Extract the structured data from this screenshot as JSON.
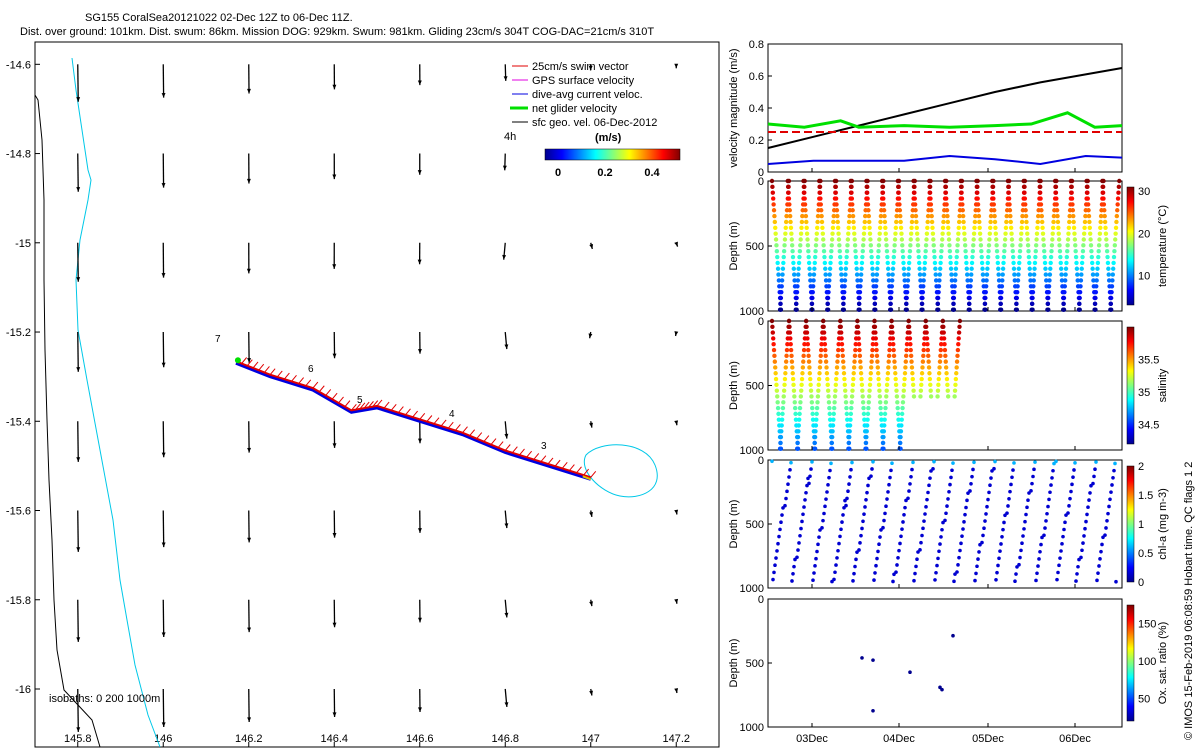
{
  "header": {
    "title": "SG155 CoralSea20121022 02-Dec 12Z to 06-Dec 11Z.",
    "subtitle": "Dist. over ground: 101km. Dist. swum: 86km. Mission DOG: 929km. Swum: 981km. Gliding 23cm/s 304T COG-DAC=21cm/s 310T"
  },
  "map": {
    "legend": {
      "items": [
        {
          "label": "25cm/s swim vector",
          "color": "#e00000"
        },
        {
          "label": "GPS surface velocity",
          "color": "#e000e0"
        },
        {
          "label": "dive-avg current veloc.",
          "color": "#0000e0"
        },
        {
          "label": "net glider velocity",
          "color": "#00e000"
        },
        {
          "label": "sfc geo. vel. 06-Dec-2012",
          "color": "#000000"
        }
      ],
      "time_label": "4h",
      "colorbar_unit": "(m/s)",
      "colorbar_ticks": [
        "0",
        "0.2",
        "0.4"
      ]
    },
    "isobaths_label": "isobaths: 0   200  1000m",
    "day_markers": [
      "7",
      "6",
      "5",
      "4",
      "3"
    ]
  },
  "chart_data": [
    {
      "type": "line",
      "title": "map",
      "xlabel": "",
      "ylabel": "",
      "xlim": [
        145.7,
        147.3
      ],
      "ylim": [
        -16.13,
        -14.55
      ],
      "x_ticks": [
        145.8,
        146,
        146.2,
        146.4,
        146.6,
        146.8,
        147,
        147.2
      ],
      "y_ticks": [
        -14.6,
        -14.8,
        -15,
        -15.2,
        -15.4,
        -15.6,
        -15.8,
        -16
      ],
      "glider_track_lon": [
        147.0,
        146.9,
        146.8,
        146.7,
        146.6,
        146.5,
        146.44,
        146.35,
        146.25,
        146.17
      ],
      "glider_track_lat": [
        -15.53,
        -15.5,
        -15.47,
        -15.43,
        -15.4,
        -15.37,
        -15.38,
        -15.33,
        -15.3,
        -15.27
      ],
      "vector_grid_lon": [
        145.8,
        146.0,
        146.2,
        146.4,
        146.6,
        146.8,
        147.0,
        147.2
      ],
      "vector_grid_lat": [
        -14.6,
        -14.8,
        -15.0,
        -15.2,
        -15.4,
        -15.6,
        -15.8,
        -16.0
      ]
    },
    {
      "type": "line",
      "xlabel": "",
      "ylabel": "velocity magnitude (m/s)",
      "ylim": [
        0,
        0.8
      ],
      "y_ticks": [
        "0",
        "0.2",
        "0.4",
        "0.6",
        "0.8"
      ],
      "x_ticks": [
        "03Dec",
        "04Dec",
        "05Dec",
        "06Dec"
      ],
      "series": [
        {
          "x": [
            0,
            0.5,
            1,
            1.5,
            2,
            2.5,
            3,
            3.5,
            3.9
          ],
          "values": [
            0.15,
            0.22,
            0.29,
            0.36,
            0.43,
            0.5,
            0.56,
            0.61,
            0.65
          ],
          "color": "#000000"
        },
        {
          "x": [
            0,
            0.5,
            1,
            1.5,
            2,
            2.5,
            3,
            3.5,
            3.9
          ],
          "values": [
            0.05,
            0.07,
            0.07,
            0.07,
            0.1,
            0.08,
            0.05,
            0.1,
            0.09
          ],
          "color": "#0000e0"
        },
        {
          "x": [
            0,
            3.9
          ],
          "values": [
            0.25,
            0.25
          ],
          "color": "#e00000"
        },
        {
          "x": [
            0,
            0.4,
            0.8,
            1.0,
            1.5,
            2.0,
            2.5,
            2.9,
            3.3,
            3.6,
            3.9
          ],
          "values": [
            0.3,
            0.28,
            0.32,
            0.28,
            0.29,
            0.28,
            0.29,
            0.3,
            0.37,
            0.28,
            0.29
          ],
          "color": "#00e000"
        }
      ]
    },
    {
      "type": "scatter",
      "ylabel": "Depth (m)",
      "colorbar_label": "temperature (°C)",
      "y_ticks": [
        "0",
        "500",
        "1000"
      ],
      "colorbar_ticks": [
        "10",
        "20",
        "30"
      ]
    },
    {
      "type": "scatter",
      "ylabel": "Depth (m)",
      "colorbar_label": "salinity",
      "y_ticks": [
        "0",
        "500",
        "1000"
      ],
      "colorbar_ticks": [
        "34.5",
        "35",
        "35.5"
      ]
    },
    {
      "type": "scatter",
      "ylabel": "Depth (m)",
      "colorbar_label": "chl-a (mg m-3)",
      "y_ticks": [
        "0",
        "500",
        "1000"
      ],
      "colorbar_ticks": [
        "0",
        "0.5",
        "1",
        "1.5",
        "2"
      ]
    },
    {
      "type": "scatter",
      "ylabel": "Depth (m)",
      "colorbar_label": "Ox. sat. ratio (%)",
      "y_ticks": [
        "0",
        "500",
        "1000"
      ],
      "colorbar_ticks": [
        "50",
        "100",
        "150"
      ],
      "x_ticks": [
        "03Dec",
        "04Dec",
        "05Dec",
        "06Dec"
      ]
    }
  ],
  "footer": {
    "credit": "© IMOS 15-Feb-2019 06:08:59 Hobart time. QC flags 1  2"
  }
}
